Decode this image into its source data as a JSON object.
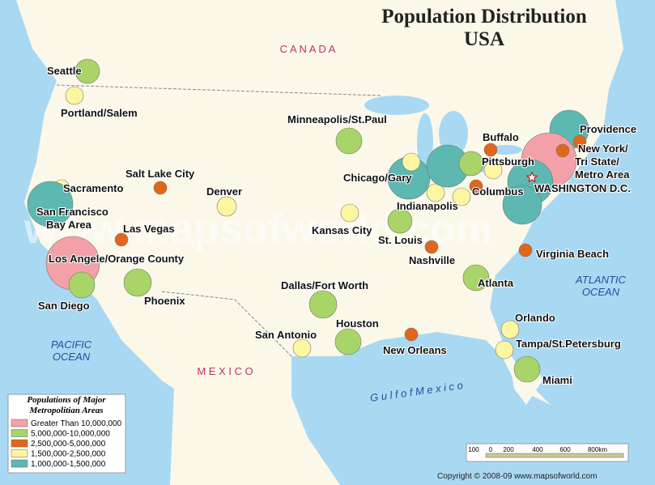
{
  "header": {
    "title": "Population Distribution",
    "subtitle": "USA"
  },
  "regions": {
    "canada": "C  A  N  A  D  A",
    "mexico": "M  E  X  I  C  O",
    "pacific": [
      "PACIFIC",
      "OCEAN"
    ],
    "atlantic": [
      "ATLANTIC",
      "OCEAN"
    ],
    "gulf": "G u l f   o f   M e x i c o"
  },
  "cities": [
    {
      "lines": [
        "Seattle"
      ]
    },
    {
      "lines": [
        "Portland/Salem"
      ]
    },
    {
      "lines": [
        "Sacramento"
      ]
    },
    {
      "lines": [
        "San Francisco",
        "Bay Area"
      ]
    },
    {
      "lines": [
        "Las Vegas"
      ]
    },
    {
      "lines": [
        "Los Angele/Orange County"
      ]
    },
    {
      "lines": [
        "San Diego"
      ]
    },
    {
      "lines": [
        "Phoenix"
      ]
    },
    {
      "lines": [
        "Salt Lake City"
      ]
    },
    {
      "lines": [
        "Denver"
      ]
    },
    {
      "lines": [
        "Minneapolis/St.Paul"
      ]
    },
    {
      "lines": [
        "Chicago/Gary"
      ]
    },
    {
      "lines": [
        "Kansas City"
      ]
    },
    {
      "lines": [
        "St. Louis"
      ]
    },
    {
      "lines": [
        "Indianapolis"
      ]
    },
    {
      "lines": [
        "Pittsburgh"
      ]
    },
    {
      "lines": [
        "Columbus"
      ]
    },
    {
      "lines": [
        "Buffalo"
      ]
    },
    {
      "lines": [
        "Providence"
      ]
    },
    {
      "lines": [
        "New York/",
        "Tri State/",
        "Metro Area"
      ]
    },
    {
      "lines": [
        "WASHINGTON D.C."
      ]
    },
    {
      "lines": [
        "Nashville"
      ]
    },
    {
      "lines": [
        "Virginia Beach"
      ]
    },
    {
      "lines": [
        "Atlanta"
      ]
    },
    {
      "lines": [
        "Dallas/Fort Worth"
      ]
    },
    {
      "lines": [
        "Houston"
      ]
    },
    {
      "lines": [
        "San Antonio"
      ]
    },
    {
      "lines": [
        "New Orleans"
      ]
    },
    {
      "lines": [
        "Orlando"
      ]
    },
    {
      "lines": [
        "Tampa/St.Petersburg"
      ]
    },
    {
      "lines": [
        "Miami"
      ]
    }
  ],
  "legend": {
    "title": [
      "Populations of Major",
      "Metropolitian Areas"
    ],
    "items": [
      {
        "label": "Greater Than 10,000,000",
        "color": "#f4a0a8"
      },
      {
        "label": "5,000,000-10,000,000",
        "color": "#a8d468"
      },
      {
        "label": "2,500,000-5,000,000",
        "color": "#e0661c"
      },
      {
        "label": "1,500,000-2,500,000",
        "color": "#fcf6a0"
      },
      {
        "label": "1,000,000-1,500,000",
        "color": "#5cb8b0"
      }
    ]
  },
  "scale": [
    "100",
    "0",
    "200",
    "400",
    "600",
    "800km"
  ],
  "watermark": "www.mapsofworld.com",
  "copyright": "Copyright © 2008-09 www.mapsofworld.com"
}
